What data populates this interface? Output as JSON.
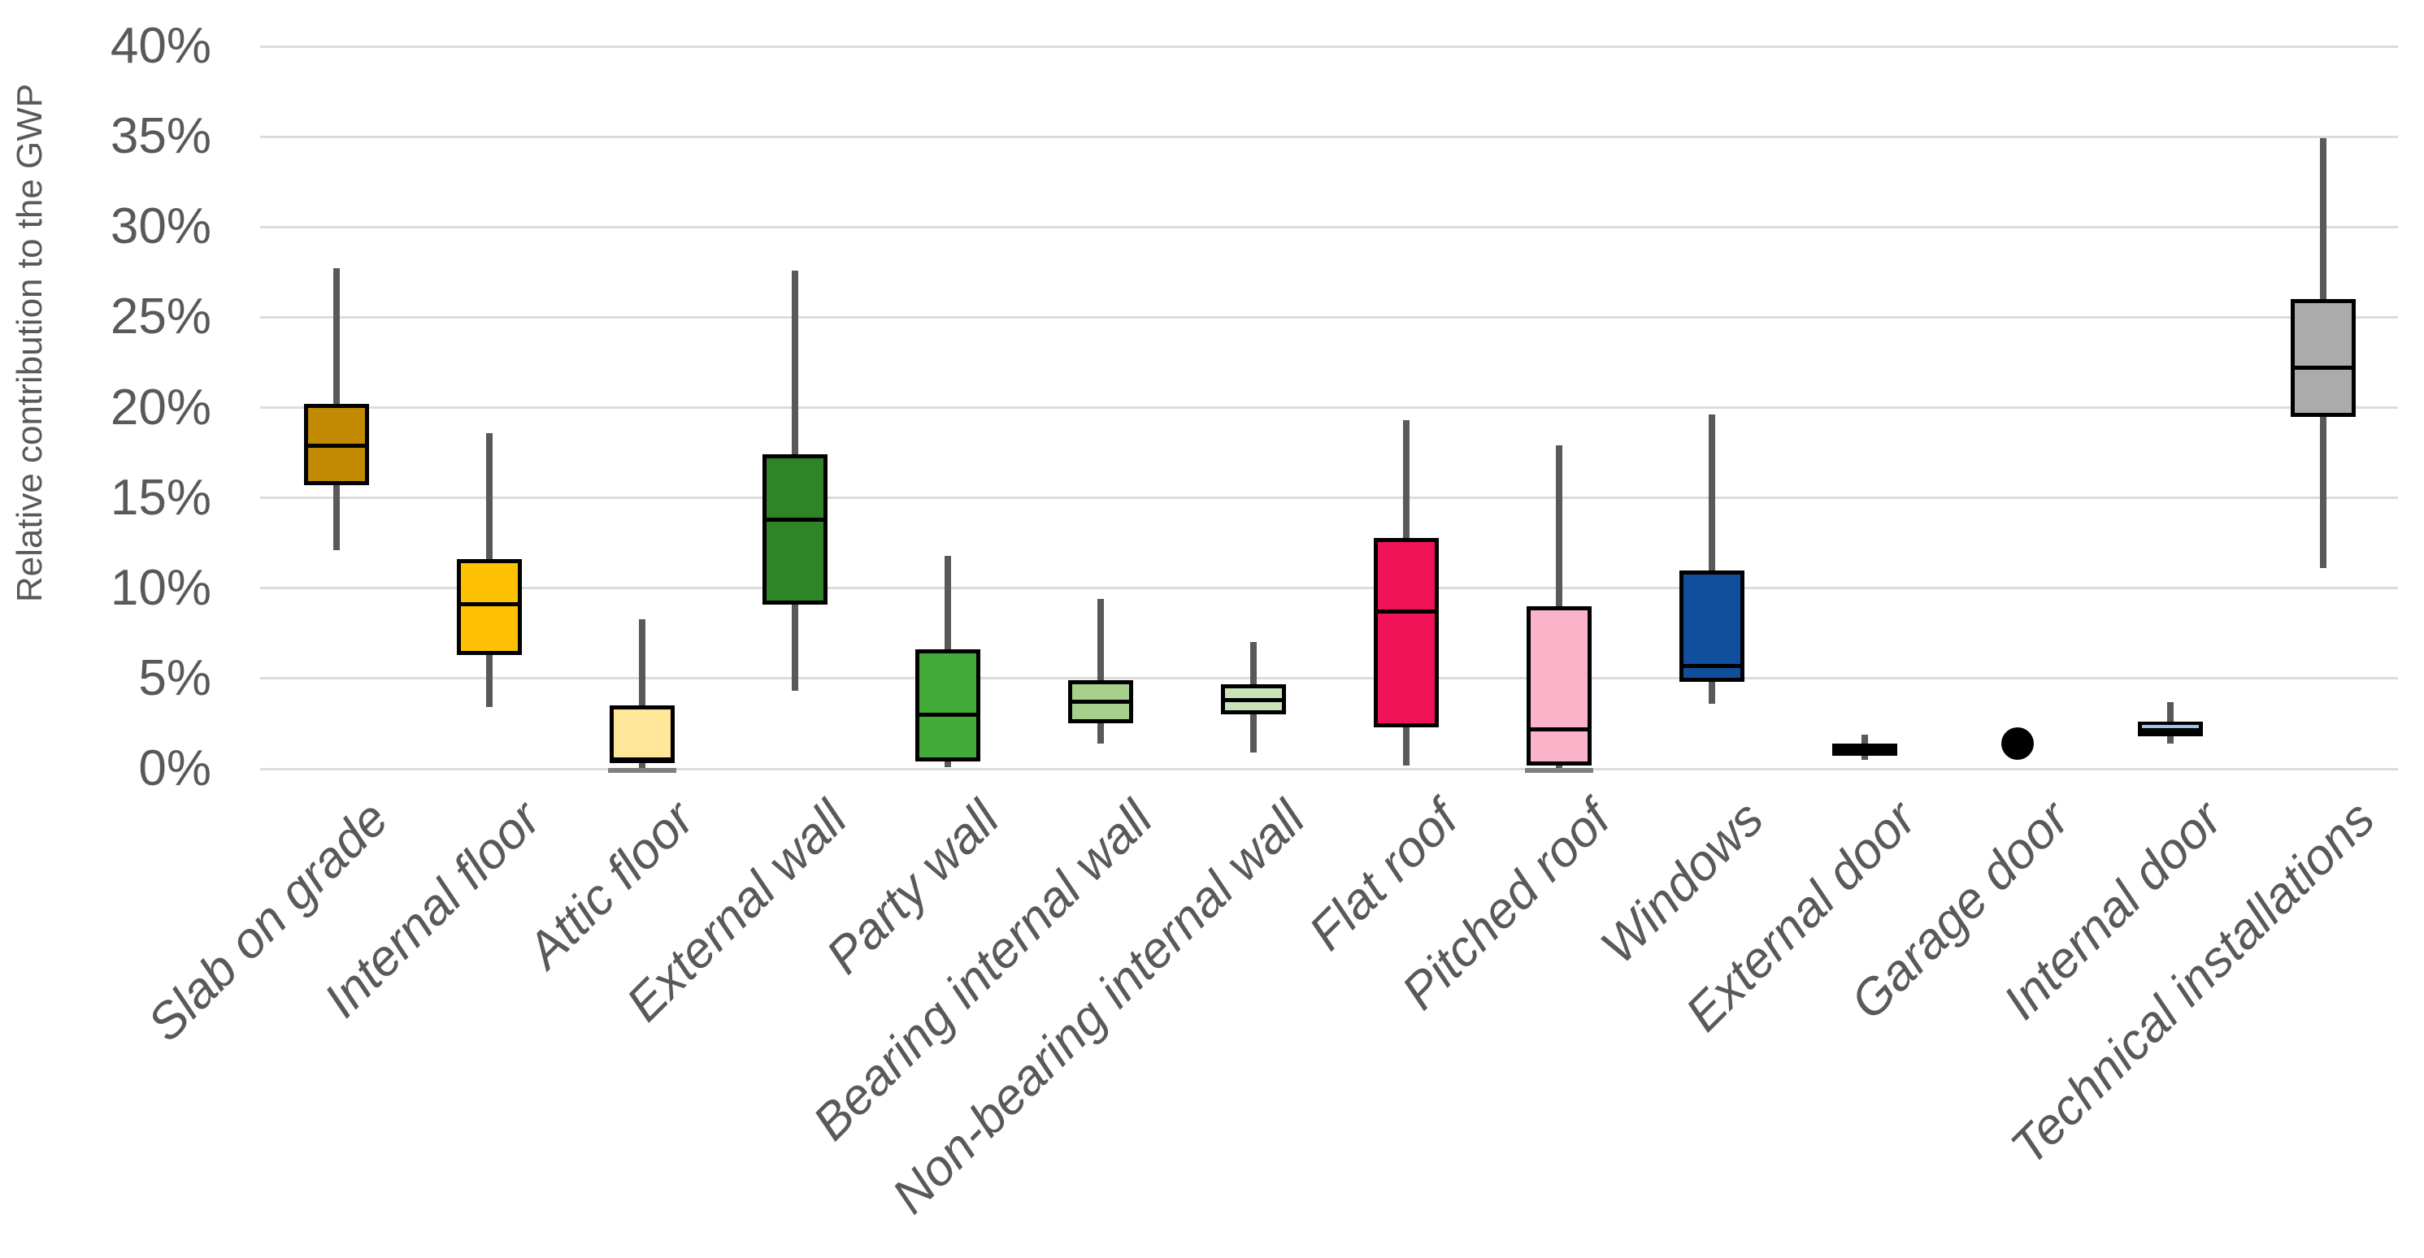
{
  "chart_data": {
    "type": "boxplot",
    "title": "",
    "xlabel": "",
    "ylabel": "Relative contribution to the GWP",
    "ylim": [
      0,
      40
    ],
    "y_tick_step": 5,
    "y_tick_labels": [
      "0%",
      "5%",
      "10%",
      "15%",
      "20%",
      "25%",
      "30%",
      "35%",
      "40%"
    ],
    "grid": true,
    "legend": "none",
    "categories": [
      "Slab on grade",
      "Internal floor",
      "Attic floor",
      "External wall",
      "Party wall",
      "Bearing internal wall",
      "Non-bearing internal wall",
      "Flat roof",
      "Pitched roof",
      "Windows",
      "External door",
      "Garage door",
      "Internal door",
      "Technical installations"
    ],
    "series": [
      {
        "name": "Slab on grade",
        "shape": "box",
        "color": "#C28A02",
        "min": 12.1,
        "q1": 15.7,
        "median": 17.9,
        "q3": 20.2,
        "max": 27.7
      },
      {
        "name": "Internal floor",
        "shape": "box",
        "color": "#FFC103",
        "min": 3.4,
        "q1": 6.3,
        "median": 9.1,
        "q3": 11.6,
        "max": 18.6
      },
      {
        "name": "Attic floor",
        "shape": "box",
        "color": "#FFE699",
        "min": 0.0,
        "q1": 0.3,
        "median": 0.5,
        "q3": 3.5,
        "max": 8.3,
        "min_cap": true
      },
      {
        "name": "External wall",
        "shape": "box",
        "color": "#2E8427",
        "min": 4.3,
        "q1": 9.1,
        "median": 13.8,
        "q3": 17.4,
        "max": 27.6
      },
      {
        "name": "Party wall",
        "shape": "box",
        "color": "#43AC39",
        "min": 0.1,
        "q1": 0.4,
        "median": 3.0,
        "q3": 6.6,
        "max": 11.8
      },
      {
        "name": "Bearing internal wall",
        "shape": "box",
        "color": "#A8D08D",
        "min": 1.4,
        "q1": 2.5,
        "median": 3.7,
        "q3": 4.9,
        "max": 9.4
      },
      {
        "name": "Non-bearing internal wall",
        "shape": "box",
        "color": "#C9E3B8",
        "min": 0.9,
        "q1": 3.0,
        "median": 3.8,
        "q3": 4.7,
        "max": 7.0
      },
      {
        "name": "Flat roof",
        "shape": "box",
        "color": "#F01358",
        "min": 0.2,
        "q1": 2.3,
        "median": 8.7,
        "q3": 12.8,
        "max": 19.3
      },
      {
        "name": "Pitched roof",
        "shape": "box",
        "color": "#FBB3CA",
        "min": 0.0,
        "q1": 0.2,
        "median": 2.2,
        "q3": 9.0,
        "max": 17.9,
        "min_cap": true
      },
      {
        "name": "Windows",
        "shape": "box",
        "color": "#0F4F9C",
        "min": 3.6,
        "q1": 4.8,
        "median": 5.7,
        "q3": 11.0,
        "max": 19.6
      },
      {
        "name": "External door",
        "shape": "box",
        "color": "#000000",
        "min": 0.5,
        "q1": 0.7,
        "median": 1.0,
        "q3": 1.4,
        "max": 1.9
      },
      {
        "name": "Garage door",
        "shape": "dot",
        "color": "#000000",
        "point": 1.4
      },
      {
        "name": "Internal door",
        "shape": "box",
        "color": "#000000",
        "median_color": "#9DC3E6",
        "min": 1.4,
        "q1": 1.8,
        "median": 2.3,
        "q3": 2.6,
        "max": 3.7
      },
      {
        "name": "Technical installations",
        "shape": "box",
        "color": "#ABABAB",
        "min": 11.1,
        "q1": 19.5,
        "median": 22.2,
        "q3": 26.0,
        "max": 34.9
      }
    ]
  },
  "colors": {
    "axis_text": "#595959",
    "gridline": "#DCDCDC",
    "whisker": "#595959",
    "box_border": "#000000",
    "median_default": "#000000",
    "background": "#FFFFFF"
  }
}
